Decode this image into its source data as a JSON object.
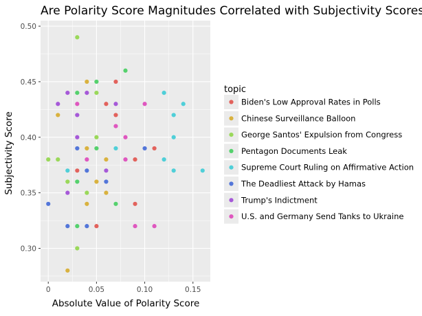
{
  "chart_data": {
    "type": "scatter",
    "title": "Are Polarity Score Magnitudes Correlated with Subjectivity Scores?",
    "xlabel": "Absolute Value of Polarity Score",
    "ylabel": "Subjectivity Score",
    "xlim": [
      -0.008,
      0.168
    ],
    "ylim": [
      0.27,
      0.505
    ],
    "x_ticks": [
      0,
      0.05,
      0.1,
      0.15
    ],
    "x_tick_labels": [
      "0",
      "0.05",
      "0.10",
      "0.15"
    ],
    "y_ticks": [
      0.3,
      0.35,
      0.4,
      0.45,
      0.5
    ],
    "y_tick_labels": [
      "0.30",
      "0.35",
      "0.40",
      "0.45",
      "0.50"
    ],
    "grid": true,
    "legend_title": "topic",
    "legend_position": "right",
    "colors": {
      "panel_background": "#ebebeb",
      "grid": "#ffffff"
    },
    "series": [
      {
        "name": "Biden's Low Approval Rates in Polls",
        "color": "#e2625c",
        "points": [
          [
            0.07,
            0.45
          ],
          [
            0.06,
            0.43
          ],
          [
            0.07,
            0.42
          ],
          [
            0.11,
            0.39
          ],
          [
            0.09,
            0.38
          ],
          [
            0.03,
            0.37
          ],
          [
            0.09,
            0.34
          ],
          [
            0.05,
            0.32
          ]
        ]
      },
      {
        "name": "Chinese Surveillance Balloon",
        "color": "#d9b23f",
        "points": [
          [
            0.04,
            0.45
          ],
          [
            0.01,
            0.42
          ],
          [
            0.04,
            0.39
          ],
          [
            0.06,
            0.38
          ],
          [
            0.05,
            0.36
          ],
          [
            0.06,
            0.35
          ],
          [
            0.04,
            0.34
          ],
          [
            0.02,
            0.28
          ]
        ]
      },
      {
        "name": "George Santos' Expulsion from Congress",
        "color": "#9ad85a",
        "points": [
          [
            0.03,
            0.49
          ],
          [
            0.05,
            0.44
          ],
          [
            0.05,
            0.4
          ],
          [
            0,
            0.38
          ],
          [
            0.01,
            0.38
          ],
          [
            0.02,
            0.36
          ],
          [
            0.04,
            0.35
          ],
          [
            0.03,
            0.3
          ]
        ]
      },
      {
        "name": "Pentagon Documents Leak",
        "color": "#55d16d",
        "points": [
          [
            0.08,
            0.46
          ],
          [
            0.05,
            0.45
          ],
          [
            0.03,
            0.44
          ],
          [
            0.05,
            0.39
          ],
          [
            0.03,
            0.36
          ],
          [
            0.07,
            0.34
          ],
          [
            0.03,
            0.32
          ]
        ]
      },
      {
        "name": "Supreme Court Ruling on Affirmative Action",
        "color": "#4fcfd8",
        "points": [
          [
            0.12,
            0.44
          ],
          [
            0.14,
            0.43
          ],
          [
            0.13,
            0.42
          ],
          [
            0.13,
            0.4
          ],
          [
            0.07,
            0.39
          ],
          [
            0.12,
            0.38
          ],
          [
            0.02,
            0.37
          ],
          [
            0.13,
            0.37
          ],
          [
            0.16,
            0.37
          ]
        ]
      },
      {
        "name": "The Deadliest Attack by Hamas",
        "color": "#5376d9",
        "points": [
          [
            0.1,
            0.39
          ],
          [
            0.03,
            0.39
          ],
          [
            0.04,
            0.37
          ],
          [
            0.06,
            0.36
          ],
          [
            0,
            0.34
          ],
          [
            0.02,
            0.32
          ],
          [
            0.04,
            0.32
          ]
        ]
      },
      {
        "name": "Trump's Indictment",
        "color": "#a659d8",
        "points": [
          [
            0.02,
            0.44
          ],
          [
            0.04,
            0.44
          ],
          [
            0.01,
            0.43
          ],
          [
            0.07,
            0.43
          ],
          [
            0.03,
            0.42
          ],
          [
            0.03,
            0.4
          ],
          [
            0.06,
            0.37
          ],
          [
            0.02,
            0.35
          ]
        ]
      },
      {
        "name": "U.S. and Germany Send Tanks to Ukraine",
        "color": "#df57bf",
        "points": [
          [
            0.03,
            0.43
          ],
          [
            0.1,
            0.43
          ],
          [
            0.07,
            0.41
          ],
          [
            0.08,
            0.4
          ],
          [
            0.04,
            0.38
          ],
          [
            0.08,
            0.38
          ],
          [
            0.09,
            0.32
          ],
          [
            0.11,
            0.32
          ]
        ]
      }
    ]
  }
}
